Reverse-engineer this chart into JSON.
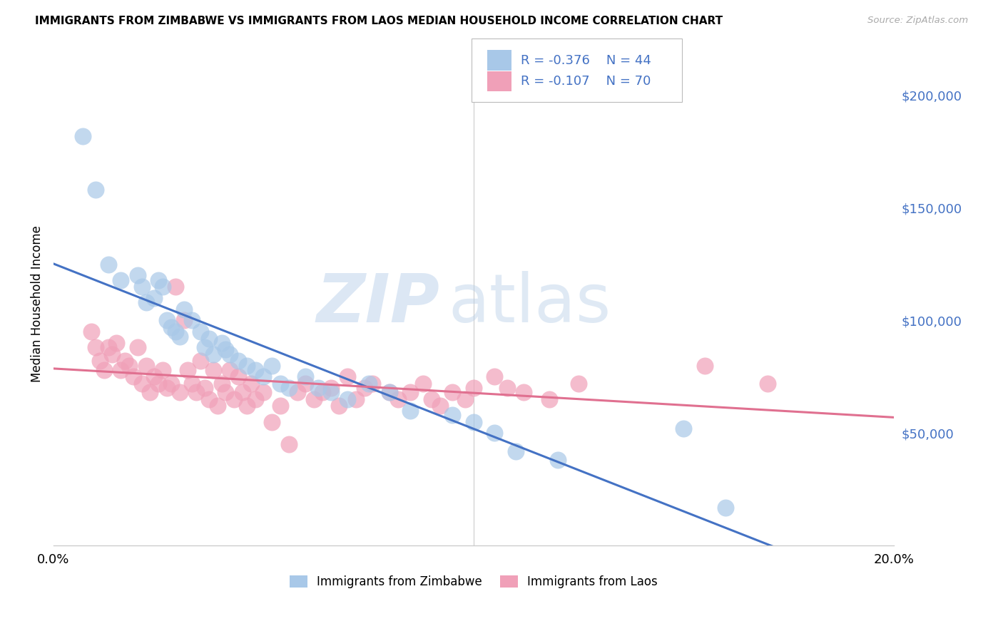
{
  "title": "IMMIGRANTS FROM ZIMBABWE VS IMMIGRANTS FROM LAOS MEDIAN HOUSEHOLD INCOME CORRELATION CHART",
  "source": "Source: ZipAtlas.com",
  "ylabel": "Median Household Income",
  "y_ticks": [
    50000,
    100000,
    150000,
    200000
  ],
  "y_tick_labels": [
    "$50,000",
    "$100,000",
    "$150,000",
    "$200,000"
  ],
  "xlim": [
    0.0,
    0.2
  ],
  "ylim": [
    0,
    215000
  ],
  "legend_r1": "-0.376",
  "legend_n1": "44",
  "legend_r2": "-0.107",
  "legend_n2": "70",
  "color_zimbabwe": "#a8c8e8",
  "color_laos": "#f0a0b8",
  "color_zimbabwe_line": "#4472c4",
  "color_laos_line": "#e07090",
  "color_tick_label": "#4472c4",
  "watermark_zip": "ZIP",
  "watermark_atlas": "atlas",
  "legend_label_zimbabwe": "Immigrants from Zimbabwe",
  "legend_label_laos": "Immigrants from Laos",
  "zimbabwe_x": [
    0.007,
    0.01,
    0.013,
    0.016,
    0.02,
    0.021,
    0.022,
    0.024,
    0.025,
    0.026,
    0.027,
    0.028,
    0.029,
    0.03,
    0.031,
    0.033,
    0.035,
    0.036,
    0.037,
    0.038,
    0.04,
    0.041,
    0.042,
    0.044,
    0.046,
    0.048,
    0.05,
    0.052,
    0.054,
    0.056,
    0.06,
    0.063,
    0.066,
    0.07,
    0.075,
    0.08,
    0.085,
    0.095,
    0.1,
    0.105,
    0.11,
    0.12,
    0.15,
    0.16
  ],
  "zimbabwe_y": [
    182000,
    158000,
    125000,
    118000,
    120000,
    115000,
    108000,
    110000,
    118000,
    115000,
    100000,
    97000,
    95000,
    93000,
    105000,
    100000,
    95000,
    88000,
    92000,
    85000,
    90000,
    87000,
    85000,
    82000,
    80000,
    78000,
    75000,
    80000,
    72000,
    70000,
    75000,
    70000,
    68000,
    65000,
    72000,
    68000,
    60000,
    58000,
    55000,
    50000,
    42000,
    38000,
    52000,
    17000
  ],
  "laos_x": [
    0.009,
    0.01,
    0.011,
    0.012,
    0.013,
    0.014,
    0.015,
    0.016,
    0.017,
    0.018,
    0.019,
    0.02,
    0.021,
    0.022,
    0.023,
    0.024,
    0.025,
    0.026,
    0.027,
    0.028,
    0.029,
    0.03,
    0.031,
    0.032,
    0.033,
    0.034,
    0.035,
    0.036,
    0.037,
    0.038,
    0.039,
    0.04,
    0.041,
    0.042,
    0.043,
    0.044,
    0.045,
    0.046,
    0.047,
    0.048,
    0.05,
    0.052,
    0.054,
    0.056,
    0.058,
    0.06,
    0.062,
    0.064,
    0.066,
    0.068,
    0.07,
    0.072,
    0.074,
    0.076,
    0.08,
    0.082,
    0.085,
    0.088,
    0.09,
    0.092,
    0.095,
    0.098,
    0.1,
    0.105,
    0.108,
    0.112,
    0.118,
    0.125,
    0.155,
    0.17
  ],
  "laos_y": [
    95000,
    88000,
    82000,
    78000,
    88000,
    85000,
    90000,
    78000,
    82000,
    80000,
    75000,
    88000,
    72000,
    80000,
    68000,
    75000,
    72000,
    78000,
    70000,
    72000,
    115000,
    68000,
    100000,
    78000,
    72000,
    68000,
    82000,
    70000,
    65000,
    78000,
    62000,
    72000,
    68000,
    78000,
    65000,
    75000,
    68000,
    62000,
    72000,
    65000,
    68000,
    55000,
    62000,
    45000,
    68000,
    72000,
    65000,
    68000,
    70000,
    62000,
    75000,
    65000,
    70000,
    72000,
    68000,
    65000,
    68000,
    72000,
    65000,
    62000,
    68000,
    65000,
    70000,
    75000,
    70000,
    68000,
    65000,
    72000,
    80000,
    72000
  ]
}
